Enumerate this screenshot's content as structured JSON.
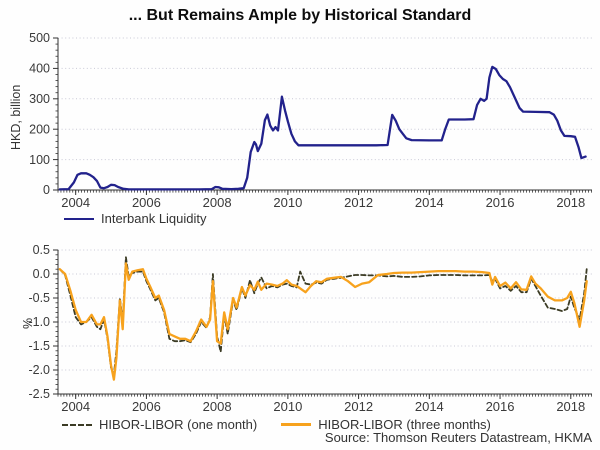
{
  "title": "... But Remains Ample by Historical Standard",
  "source": "Source: Thomson Reuters Datastream, HKMA",
  "colors": {
    "navy": "#22228c",
    "orange": "#f7a21d",
    "dark_olive": "#3b3b24",
    "grid": "#c9c9d6",
    "axis": "#333333",
    "text": "#3a3a3a"
  },
  "chart_data": [
    {
      "type": "line",
      "ylabel": "HKD, billion",
      "xlabel": "",
      "ylim": [
        0,
        500
      ],
      "xlim": [
        2003.5,
        2018.6
      ],
      "grid": true,
      "legend_position": "bottom-left",
      "y_ticks": [
        0,
        100,
        200,
        300,
        400,
        500
      ],
      "y_tick_labels": [
        "0",
        "100",
        "200",
        "300",
        "400",
        "500"
      ],
      "y_minor_step": 20,
      "x_tick_years": [
        2004,
        2006,
        2008,
        2010,
        2012,
        2014,
        2016,
        2018
      ],
      "legend": [
        {
          "name": "Interbank Liquidity"
        }
      ],
      "series": [
        {
          "name": "Interbank Liquidity",
          "color": "#22228c",
          "style": "solid",
          "x": [
            2003.55,
            2003.8,
            2003.95,
            2004.05,
            2004.15,
            2004.3,
            2004.4,
            2004.5,
            2004.6,
            2004.7,
            2004.8,
            2004.9,
            2005.0,
            2005.1,
            2005.2,
            2005.35,
            2005.5,
            2006.0,
            2006.5,
            2007.0,
            2007.5,
            2007.85,
            2007.95,
            2008.05,
            2008.15,
            2008.4,
            2008.6,
            2008.75,
            2008.85,
            2008.95,
            2009.05,
            2009.1,
            2009.15,
            2009.25,
            2009.35,
            2009.42,
            2009.5,
            2009.58,
            2009.65,
            2009.72,
            2009.83,
            2009.92,
            2010.0,
            2010.1,
            2010.2,
            2010.3,
            2010.6,
            2011.0,
            2011.5,
            2012.0,
            2012.5,
            2012.82,
            2012.95,
            2013.05,
            2013.15,
            2013.25,
            2013.35,
            2013.5,
            2014.0,
            2014.35,
            2014.45,
            2014.55,
            2015.0,
            2015.25,
            2015.35,
            2015.45,
            2015.55,
            2015.62,
            2015.7,
            2015.78,
            2015.88,
            2015.98,
            2016.08,
            2016.18,
            2016.28,
            2016.42,
            2016.55,
            2016.65,
            2017.0,
            2017.4,
            2017.52,
            2017.62,
            2017.72,
            2017.82,
            2018.0,
            2018.12,
            2018.22,
            2018.3,
            2018.42
          ],
          "values": [
            2,
            3,
            25,
            50,
            55,
            55,
            50,
            42,
            30,
            8,
            6,
            10,
            17,
            16,
            10,
            4,
            2,
            2,
            2,
            2,
            2,
            3,
            10,
            9,
            4,
            3,
            4,
            6,
            40,
            125,
            158,
            150,
            128,
            152,
            230,
            248,
            212,
            196,
            207,
            196,
            307,
            262,
            225,
            185,
            160,
            147,
            147,
            147,
            147,
            147,
            147,
            148,
            247,
            228,
            200,
            185,
            170,
            164,
            163,
            163,
            200,
            232,
            232,
            233,
            280,
            300,
            293,
            300,
            370,
            405,
            398,
            378,
            365,
            358,
            338,
            303,
            270,
            258,
            257,
            256,
            248,
            228,
            196,
            178,
            177,
            175,
            140,
            105,
            110
          ]
        }
      ]
    },
    {
      "type": "line",
      "ylabel": "%",
      "xlabel": "",
      "ylim": [
        -2.5,
        0.5
      ],
      "xlim": [
        2003.5,
        2018.6
      ],
      "grid": true,
      "legend_position": "bottom-left",
      "y_ticks": [
        0.5,
        0.0,
        -0.5,
        -1.0,
        -1.5,
        -2.0,
        -2.5
      ],
      "y_tick_labels": [
        "0.5",
        "0.0",
        "-0.5",
        "-1.0",
        "-1.5",
        "-2.0",
        "-2.5"
      ],
      "y_minor_step": 0.1,
      "x_tick_years": [
        2004,
        2006,
        2008,
        2010,
        2012,
        2014,
        2016,
        2018
      ],
      "legend": [
        {
          "name": "HIBOR-LIBOR (one month)"
        },
        {
          "name": "HIBOR-LIBOR (three months)"
        }
      ],
      "shared_x": [
        2003.55,
        2003.7,
        2003.85,
        2004.0,
        2004.15,
        2004.3,
        2004.45,
        2004.6,
        2004.7,
        2004.8,
        2004.9,
        2005.0,
        2005.08,
        2005.15,
        2005.25,
        2005.33,
        2005.42,
        2005.5,
        2005.6,
        2005.75,
        2005.9,
        2006.0,
        2006.1,
        2006.25,
        2006.35,
        2006.5,
        2006.65,
        2006.8,
        2006.95,
        2007.1,
        2007.25,
        2007.4,
        2007.55,
        2007.7,
        2007.8,
        2007.88,
        2008.0,
        2008.1,
        2008.2,
        2008.3,
        2008.45,
        2008.55,
        2008.7,
        2008.8,
        2008.93,
        2009.05,
        2009.15,
        2009.25,
        2009.4,
        2009.55,
        2009.7,
        2009.85,
        2009.97,
        2010.1,
        2010.25,
        2010.35,
        2010.5,
        2010.65,
        2010.8,
        2010.95,
        2011.1,
        2011.3,
        2011.5,
        2011.7,
        2011.9,
        2012.1,
        2012.3,
        2012.55,
        2012.8,
        2013.0,
        2013.25,
        2013.5,
        2013.75,
        2014.0,
        2014.25,
        2014.5,
        2014.75,
        2015.0,
        2015.25,
        2015.5,
        2015.7,
        2015.78,
        2015.86,
        2016.0,
        2016.15,
        2016.3,
        2016.45,
        2016.6,
        2016.75,
        2016.88,
        2017.0,
        2017.15,
        2017.35,
        2017.55,
        2017.75,
        2017.9,
        2018.0,
        2018.1,
        2018.25,
        2018.38,
        2018.45
      ],
      "series": [
        {
          "name": "HIBOR-LIBOR (one month)",
          "color": "#3b3b24",
          "style": "dashed",
          "values": [
            0.1,
            -0.02,
            -0.45,
            -0.9,
            -1.05,
            -1.0,
            -0.9,
            -1.1,
            -1.15,
            -0.95,
            -1.35,
            -1.95,
            -2.1,
            -1.6,
            -0.5,
            -1.0,
            0.35,
            -0.05,
            0.02,
            0.05,
            0.05,
            -0.15,
            -0.3,
            -0.55,
            -0.5,
            -0.8,
            -1.35,
            -1.4,
            -1.4,
            -1.38,
            -1.42,
            -1.25,
            -1.0,
            -1.12,
            -0.9,
            0.0,
            -1.3,
            -1.62,
            -0.85,
            -1.25,
            -0.55,
            -0.75,
            -0.3,
            -0.5,
            -0.13,
            -0.4,
            -0.2,
            -0.07,
            -0.3,
            -0.25,
            -0.28,
            -0.22,
            -0.2,
            -0.25,
            -0.28,
            0.05,
            -0.2,
            -0.22,
            -0.18,
            -0.2,
            -0.12,
            -0.1,
            -0.08,
            -0.05,
            -0.02,
            -0.02,
            -0.03,
            -0.03,
            -0.05,
            -0.04,
            -0.06,
            -0.06,
            -0.05,
            -0.03,
            -0.02,
            -0.02,
            -0.02,
            -0.03,
            -0.03,
            -0.03,
            -0.02,
            -0.15,
            -0.1,
            -0.3,
            -0.25,
            -0.35,
            -0.25,
            -0.38,
            -0.38,
            -0.1,
            -0.25,
            -0.45,
            -0.7,
            -0.73,
            -0.77,
            -0.73,
            -0.47,
            -0.7,
            -0.95,
            -0.4,
            0.1
          ]
        },
        {
          "name": "HIBOR-LIBOR (three months)",
          "color": "#f7a21d",
          "style": "solid",
          "values": [
            0.1,
            0.0,
            -0.35,
            -0.75,
            -1.0,
            -1.0,
            -0.85,
            -1.05,
            -1.05,
            -0.9,
            -1.3,
            -1.9,
            -2.2,
            -1.75,
            -0.55,
            -1.15,
            0.22,
            -0.12,
            0.05,
            0.08,
            0.1,
            -0.1,
            -0.25,
            -0.5,
            -0.45,
            -0.75,
            -1.25,
            -1.3,
            -1.35,
            -1.35,
            -1.4,
            -1.2,
            -0.95,
            -1.1,
            -0.95,
            -0.15,
            -1.4,
            -1.45,
            -0.8,
            -1.15,
            -0.5,
            -0.7,
            -0.27,
            -0.45,
            -0.23,
            -0.33,
            -0.16,
            -0.33,
            -0.2,
            -0.22,
            -0.25,
            -0.2,
            -0.13,
            -0.22,
            -0.25,
            -0.3,
            -0.38,
            -0.25,
            -0.15,
            -0.17,
            -0.1,
            -0.08,
            -0.06,
            -0.15,
            -0.27,
            -0.2,
            -0.17,
            -0.02,
            0.0,
            0.02,
            0.03,
            0.03,
            0.04,
            0.05,
            0.06,
            0.06,
            0.06,
            0.05,
            0.05,
            0.04,
            0.02,
            -0.22,
            -0.06,
            -0.25,
            -0.18,
            -0.3,
            -0.17,
            -0.32,
            -0.33,
            -0.05,
            -0.2,
            -0.3,
            -0.47,
            -0.55,
            -0.55,
            -0.5,
            -0.37,
            -0.6,
            -1.1,
            -0.55,
            -0.15
          ]
        }
      ]
    }
  ]
}
